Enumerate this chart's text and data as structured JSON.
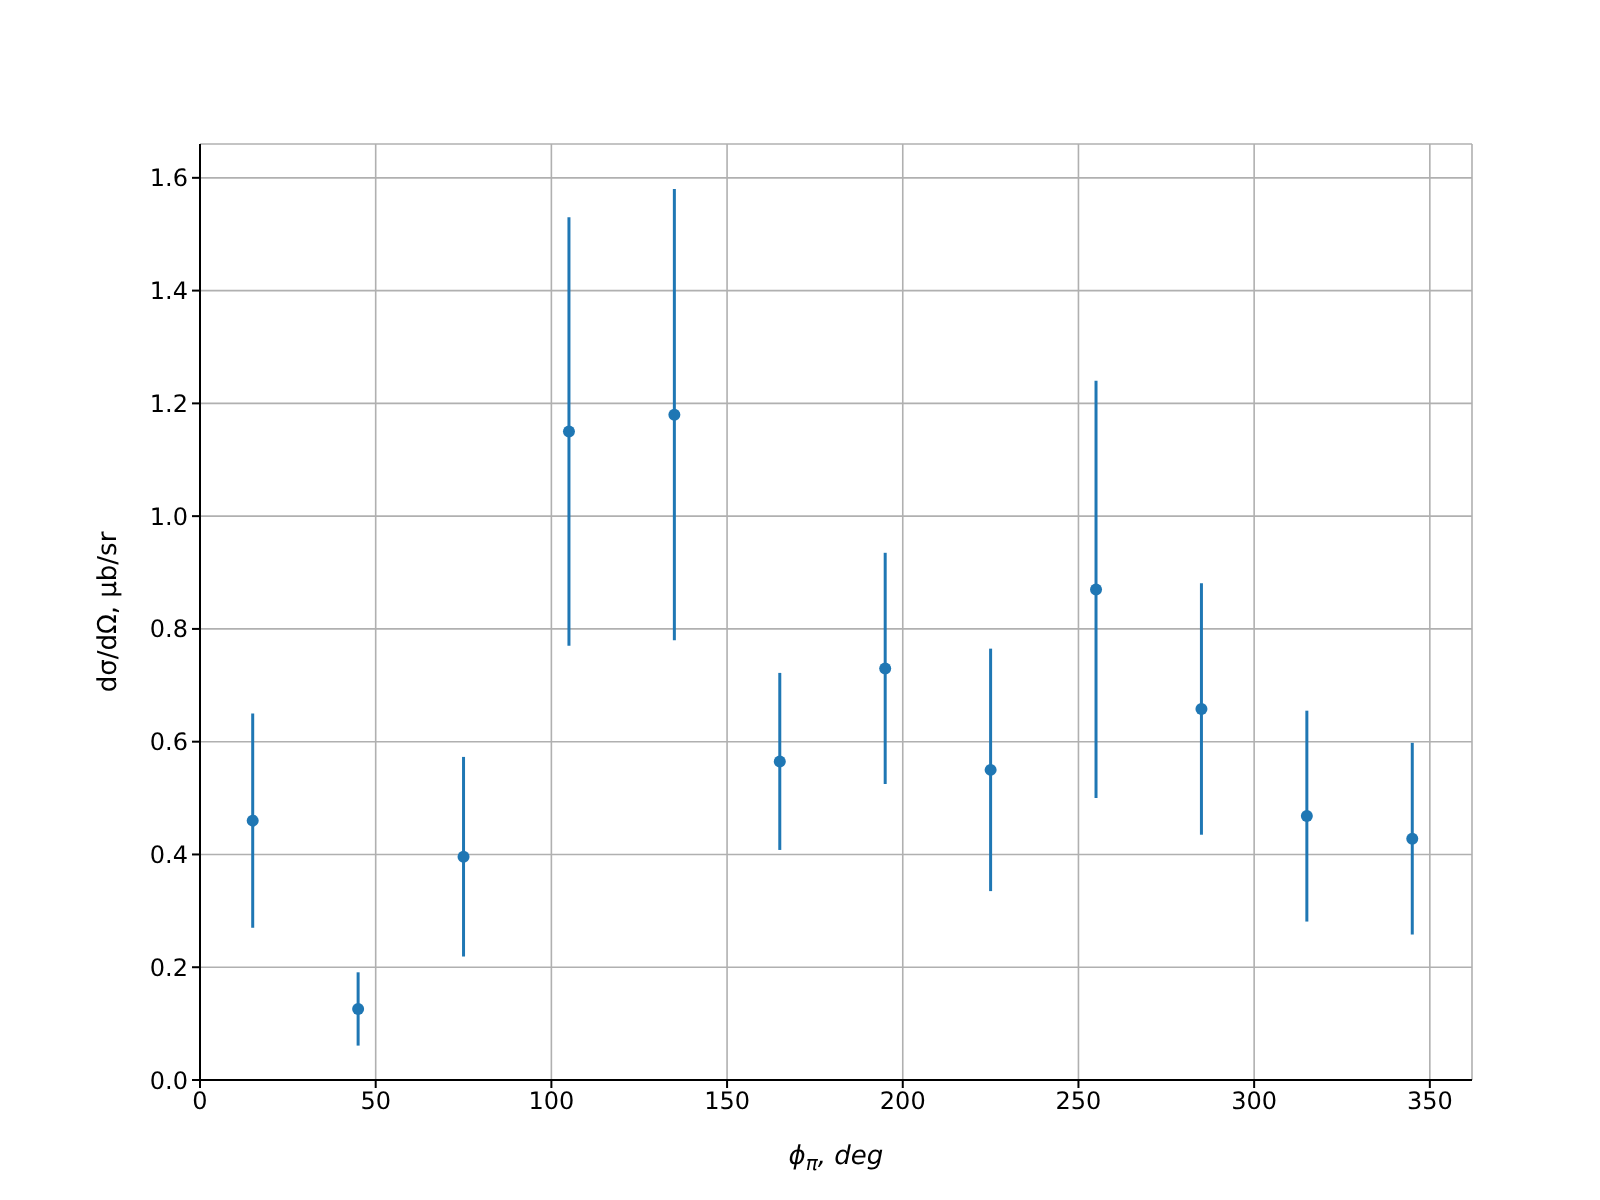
{
  "chart_data": {
    "type": "scatter",
    "xlabel": "ϕ$_{π}$, deg",
    "ylabel": "dσ/dΩ, μb/sr",
    "x": [
      15,
      45,
      75,
      105,
      135,
      165,
      195,
      225,
      255,
      285,
      315,
      345
    ],
    "values": [
      0.46,
      0.126,
      0.396,
      1.15,
      1.18,
      0.565,
      0.73,
      0.55,
      0.87,
      0.658,
      0.468,
      0.428
    ],
    "errors": [
      0.19,
      0.065,
      0.177,
      0.38,
      0.4,
      0.157,
      0.205,
      0.215,
      0.37,
      0.223,
      0.187,
      0.17
    ],
    "color": "#1f77b4",
    "marker": "circle",
    "xlim": [
      0,
      362
    ],
    "xticks": [
      0,
      50,
      100,
      150,
      200,
      250,
      300,
      350
    ],
    "ylim": [
      0,
      1.66
    ],
    "yticks": [
      {
        "value": 0,
        "label": "0.0"
      },
      0.2,
      0.4,
      0.6,
      0.8,
      {
        "value": 1,
        "label": "1.0"
      },
      1.2,
      1.4,
      1.6
    ],
    "grid": true
  }
}
